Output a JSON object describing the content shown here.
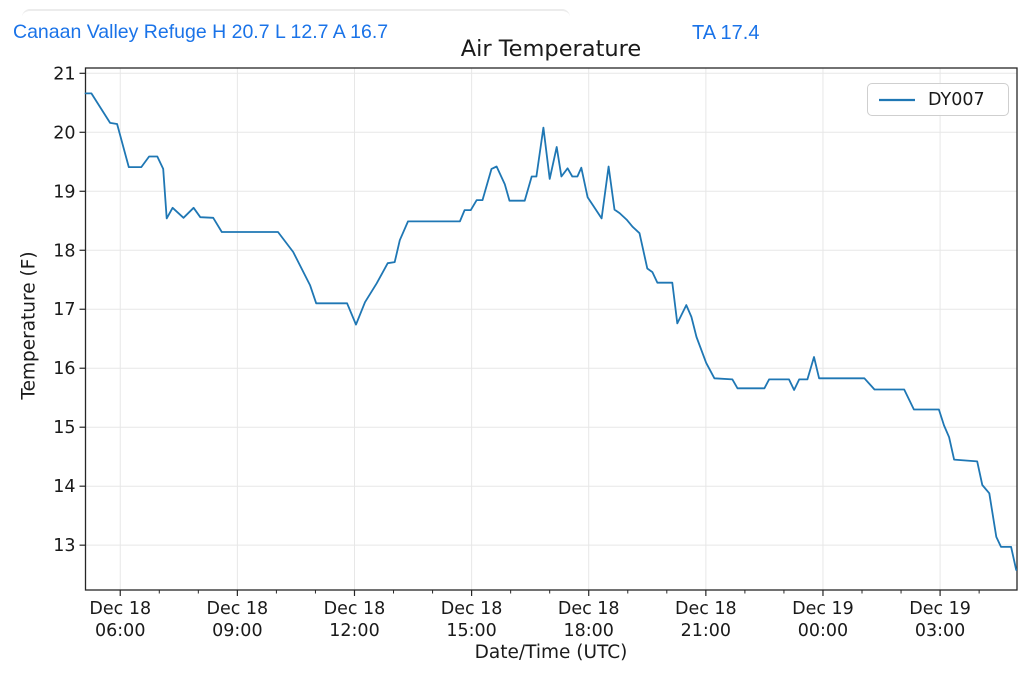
{
  "header": {
    "station_summary": "Canaan Valley Refuge H 20.7 L 12.7 A 16.7",
    "ta_reading": "TA 17.4",
    "text_color": "#1a73e8"
  },
  "chart_data": {
    "type": "line",
    "title": "Air Temperature",
    "xlabel": "Date/Time (UTC)",
    "ylabel": "Temperature (F)",
    "grid": true,
    "legend_position": "upper right",
    "colors": {
      "line": "#1f77b4",
      "grid": "#e7e7e7",
      "spine": "#262626",
      "tick_text": "#1a1a1a"
    },
    "ylim": [
      12.24,
      21.09
    ],
    "yticks": [
      13,
      14,
      15,
      16,
      17,
      18,
      19,
      20,
      21
    ],
    "x_axis": {
      "unit": "hours_since_Dec18_00:00_UTC",
      "xlim": [
        5.11,
        28.97
      ],
      "major_ticks": [
        {
          "hour": 6,
          "date": "Dec 18",
          "time": "06:00"
        },
        {
          "hour": 9,
          "date": "Dec 18",
          "time": "09:00"
        },
        {
          "hour": 12,
          "date": "Dec 18",
          "time": "12:00"
        },
        {
          "hour": 15,
          "date": "Dec 18",
          "time": "15:00"
        },
        {
          "hour": 18,
          "date": "Dec 18",
          "time": "18:00"
        },
        {
          "hour": 21,
          "date": "Dec 18",
          "time": "21:00"
        },
        {
          "hour": 24,
          "date": "Dec 19",
          "time": "00:00"
        },
        {
          "hour": 27,
          "date": "Dec 19",
          "time": "03:00"
        }
      ],
      "minor_tick_every_hours": 1
    },
    "series": [
      {
        "name": "DY007",
        "color": "#1f77b4",
        "points": [
          [
            5.11,
            20.66
          ],
          [
            5.26,
            20.66
          ],
          [
            5.74,
            20.16
          ],
          [
            5.92,
            20.14
          ],
          [
            6.22,
            19.41
          ],
          [
            6.54,
            19.41
          ],
          [
            6.74,
            19.59
          ],
          [
            6.95,
            19.59
          ],
          [
            7.1,
            19.38
          ],
          [
            7.19,
            18.54
          ],
          [
            7.34,
            18.72
          ],
          [
            7.62,
            18.55
          ],
          [
            7.88,
            18.72
          ],
          [
            8.05,
            18.56
          ],
          [
            8.38,
            18.55
          ],
          [
            8.6,
            18.31
          ],
          [
            10.04,
            18.31
          ],
          [
            10.43,
            17.97
          ],
          [
            10.86,
            17.41
          ],
          [
            11.02,
            17.1
          ],
          [
            11.81,
            17.1
          ],
          [
            12.04,
            16.74
          ],
          [
            12.27,
            17.12
          ],
          [
            12.57,
            17.44
          ],
          [
            12.85,
            17.78
          ],
          [
            13.03,
            17.8
          ],
          [
            13.16,
            18.17
          ],
          [
            13.37,
            18.49
          ],
          [
            14.7,
            18.49
          ],
          [
            14.82,
            18.68
          ],
          [
            14.98,
            18.68
          ],
          [
            15.13,
            18.85
          ],
          [
            15.28,
            18.85
          ],
          [
            15.51,
            19.38
          ],
          [
            15.64,
            19.42
          ],
          [
            15.85,
            19.12
          ],
          [
            15.97,
            18.84
          ],
          [
            16.36,
            18.84
          ],
          [
            16.54,
            19.25
          ],
          [
            16.66,
            19.25
          ],
          [
            16.84,
            20.08
          ],
          [
            17.0,
            19.21
          ],
          [
            17.18,
            19.75
          ],
          [
            17.3,
            19.25
          ],
          [
            17.46,
            19.39
          ],
          [
            17.58,
            19.25
          ],
          [
            17.71,
            19.25
          ],
          [
            17.81,
            19.4
          ],
          [
            17.97,
            18.9
          ],
          [
            18.1,
            18.77
          ],
          [
            18.33,
            18.54
          ],
          [
            18.51,
            19.42
          ],
          [
            18.66,
            18.69
          ],
          [
            18.79,
            18.63
          ],
          [
            18.97,
            18.52
          ],
          [
            19.12,
            18.4
          ],
          [
            19.3,
            18.29
          ],
          [
            19.5,
            17.69
          ],
          [
            19.63,
            17.63
          ],
          [
            19.76,
            17.45
          ],
          [
            20.14,
            17.45
          ],
          [
            20.27,
            16.76
          ],
          [
            20.5,
            17.07
          ],
          [
            20.63,
            16.87
          ],
          [
            20.76,
            16.53
          ],
          [
            21.01,
            16.09
          ],
          [
            21.22,
            15.83
          ],
          [
            21.68,
            15.81
          ],
          [
            21.81,
            15.66
          ],
          [
            22.5,
            15.66
          ],
          [
            22.62,
            15.81
          ],
          [
            23.13,
            15.81
          ],
          [
            23.26,
            15.63
          ],
          [
            23.39,
            15.81
          ],
          [
            23.6,
            15.81
          ],
          [
            23.77,
            16.19
          ],
          [
            23.9,
            15.83
          ],
          [
            25.06,
            15.83
          ],
          [
            25.32,
            15.64
          ],
          [
            26.08,
            15.64
          ],
          [
            26.33,
            15.3
          ],
          [
            26.97,
            15.3
          ],
          [
            27.1,
            15.03
          ],
          [
            27.23,
            14.83
          ],
          [
            27.36,
            14.45
          ],
          [
            27.95,
            14.42
          ],
          [
            28.08,
            14.02
          ],
          [
            28.26,
            13.88
          ],
          [
            28.44,
            13.14
          ],
          [
            28.56,
            12.97
          ],
          [
            28.82,
            12.97
          ],
          [
            28.95,
            12.58
          ]
        ]
      }
    ]
  }
}
